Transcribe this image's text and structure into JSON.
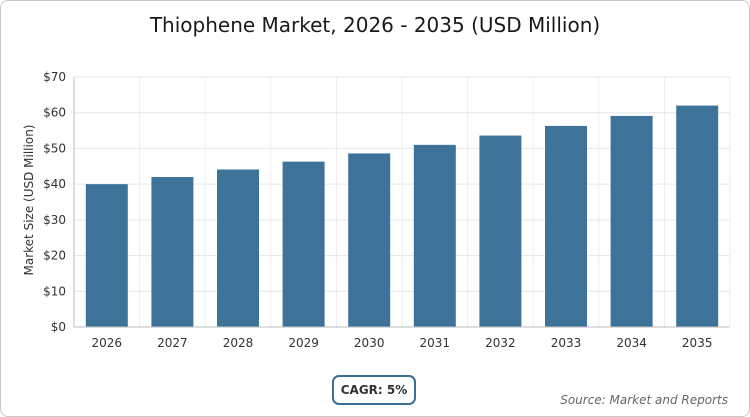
{
  "chart_data": {
    "type": "bar",
    "title": "Thiophene Market, 2026 - 2035 (USD Million)",
    "ylabel": "Market Size (USD Million)",
    "xlabel": "",
    "categories": [
      "2026",
      "2027",
      "2028",
      "2029",
      "2030",
      "2031",
      "2032",
      "2033",
      "2034",
      "2035"
    ],
    "values": [
      40,
      42,
      44.1,
      46.3,
      48.6,
      51,
      53.6,
      56.3,
      59.1,
      62
    ],
    "ylim": [
      0,
      70
    ],
    "yticks": [
      0,
      10,
      20,
      30,
      40,
      50,
      60,
      70
    ],
    "ytick_labels": [
      "$0",
      "$10",
      "$20",
      "$30",
      "$40",
      "$50",
      "$60",
      "$70"
    ],
    "grid": true,
    "bar_color": "#3d7399"
  },
  "cagr_label": "CAGR: 5%",
  "source_label": "Source: Market and Reports"
}
